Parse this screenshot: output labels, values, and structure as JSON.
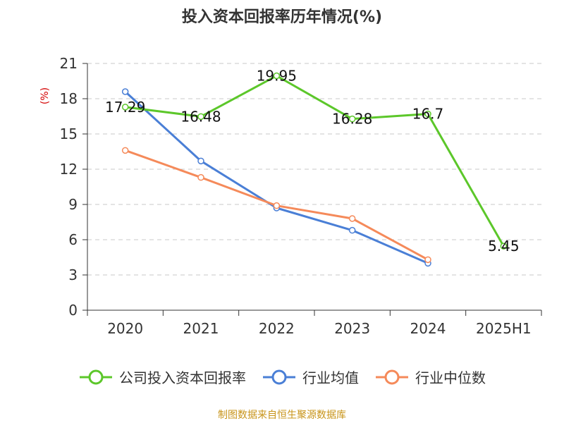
{
  "title": "投入资本回报率历年情况(%)",
  "source": "制图数据来自恒生聚源数据库",
  "chart_data": {
    "type": "line",
    "title": "投入资本回报率历年情况(%)",
    "ylabel": "(%)",
    "xlabel": "",
    "categories": [
      "2020",
      "2021",
      "2022",
      "2023",
      "2024",
      "2025H1"
    ],
    "ylim": [
      0,
      21
    ],
    "yticks": [
      0,
      3,
      6,
      9,
      12,
      15,
      18,
      21
    ],
    "grid": true,
    "legend_position": "bottom",
    "series": [
      {
        "name": "公司投入资本回报率",
        "color": "#5cc72a",
        "values": [
          17.29,
          16.48,
          19.95,
          16.28,
          16.7,
          5.45
        ],
        "labels": [
          "17.29",
          "16.48",
          "19.95",
          "16.28",
          "16.7",
          "5.45"
        ]
      },
      {
        "name": "行业均值",
        "color": "#4a7fd6",
        "values": [
          18.6,
          12.7,
          8.7,
          6.8,
          4.0,
          null
        ]
      },
      {
        "name": "行业中位数",
        "color": "#f58a5a",
        "values": [
          13.6,
          11.3,
          8.9,
          7.8,
          4.3,
          null
        ]
      }
    ]
  }
}
